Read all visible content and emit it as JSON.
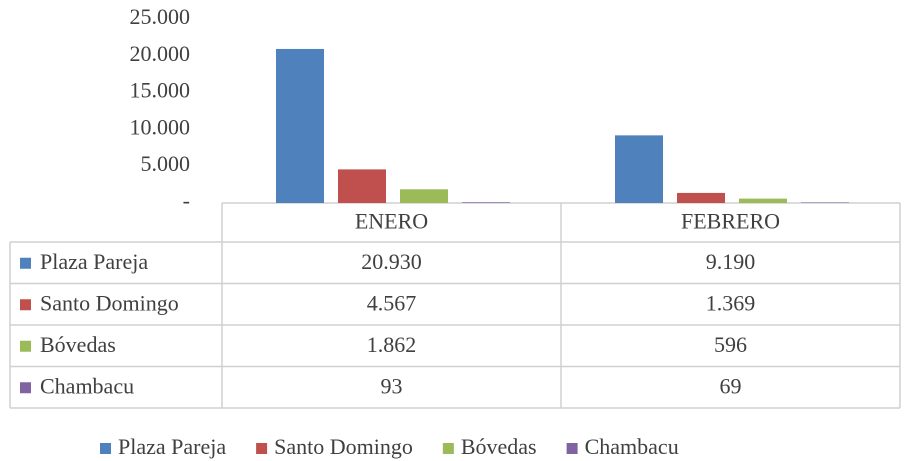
{
  "chart_data": {
    "type": "bar",
    "categories": [
      "ENERO",
      "FEBRERO"
    ],
    "series": [
      {
        "name": "Plaza Pareja",
        "color": "#4f81bd",
        "values": [
          20930,
          9190
        ],
        "value_labels": [
          "20.930",
          "9.190"
        ]
      },
      {
        "name": "Santo Domingo",
        "color": "#c0504d",
        "values": [
          4567,
          1369
        ],
        "value_labels": [
          "4.567",
          "1.369"
        ]
      },
      {
        "name": "Bóvedas",
        "color": "#9bbb59",
        "values": [
          1862,
          596
        ],
        "value_labels": [
          "1.862",
          "596"
        ]
      },
      {
        "name": "Chambacu",
        "color": "#8064a2",
        "values": [
          93,
          69
        ],
        "value_labels": [
          "93",
          "69"
        ]
      }
    ],
    "ylim": [
      0,
      25000
    ],
    "yticks": [
      {
        "value": 0,
        "label": "-"
      },
      {
        "value": 5000,
        "label": "5.000"
      },
      {
        "value": 10000,
        "label": "10.000"
      },
      {
        "value": 15000,
        "label": "15.000"
      },
      {
        "value": 20000,
        "label": "20.000"
      },
      {
        "value": 25000,
        "label": "25.000"
      }
    ],
    "grid": false,
    "legend": "bottom"
  }
}
